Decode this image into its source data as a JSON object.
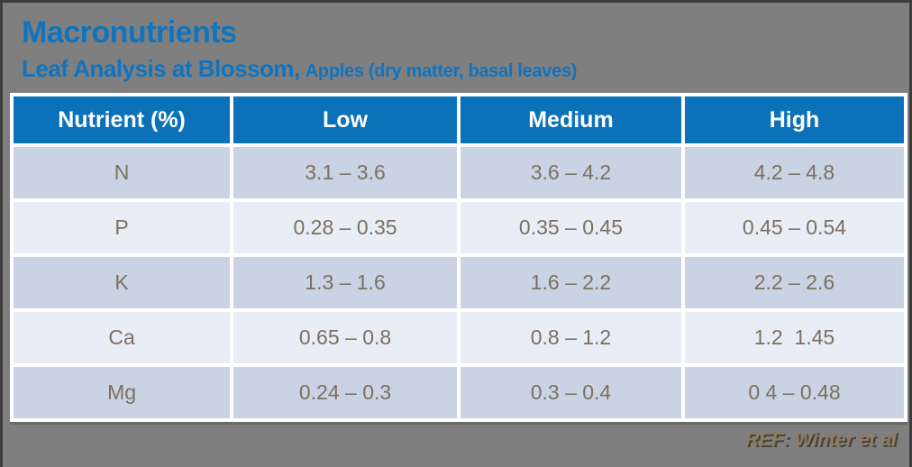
{
  "slide": {
    "title": "Macronutrients",
    "subtitle_main": "Leaf Analysis at Blossom,",
    "subtitle_detail": "Apples (dry matter, basal leaves)",
    "reference": "REF: Winter et al"
  },
  "table": {
    "headers": [
      "Nutrient (%)",
      "Low",
      "Medium",
      "High"
    ],
    "rows": [
      {
        "nutrient": "N",
        "low": "3.1 – 3.6",
        "medium": "3.6 – 4.2",
        "high": "4.2 – 4.8"
      },
      {
        "nutrient": "P",
        "low": "0.28 – 0.35",
        "medium": "0.35 – 0.45",
        "high": "0.45 – 0.54"
      },
      {
        "nutrient": "K",
        "low": "1.3 – 1.6",
        "medium": "1.6 – 2.2",
        "high": "2.2 – 2.6"
      },
      {
        "nutrient": "Ca",
        "low": "0.65 – 0.8",
        "medium": "0.8 – 1.2",
        "high": "1.2  1.45"
      },
      {
        "nutrient": "Mg",
        "low": "0.24 – 0.3",
        "medium": "0.3 – 0.4",
        "high": "0 4 – 0.48"
      }
    ]
  },
  "colors": {
    "background_gray": "#7f7f7f",
    "frame_border": "#3c3c3c",
    "title_blue": "#0f74c0",
    "header_blue": "#0b72b9",
    "row_dark": "#c9d3e4",
    "row_light": "#e9edf5",
    "cell_text": "#7c7060",
    "reference_text": "#8d7c63"
  }
}
